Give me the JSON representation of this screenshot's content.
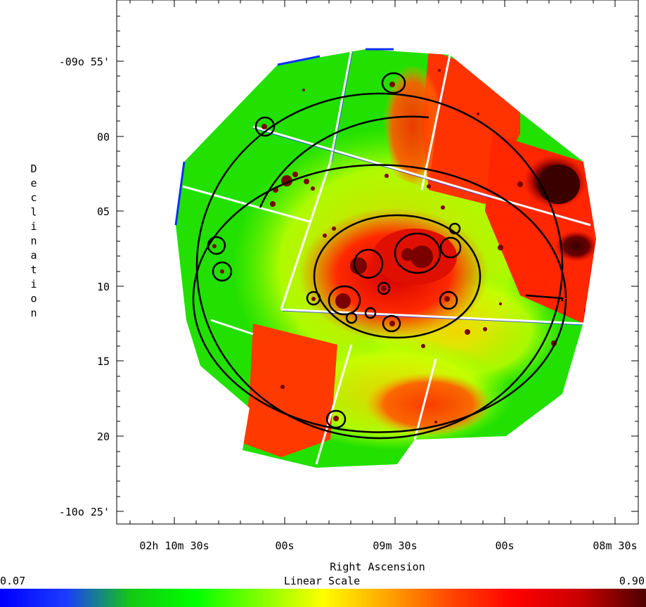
{
  "chart_data": {
    "type": "heatmap",
    "title": "",
    "xlabel": "Right Ascension",
    "ylabel": "Declination",
    "x_ticks": [
      "02h 10m 30s",
      "00s",
      "09m 30s",
      "00s",
      "08m 30s"
    ],
    "y_ticks": [
      "-09o 55'",
      "00",
      "05",
      "10",
      "15",
      "20",
      "-10o 25'"
    ],
    "colorbar": {
      "label": "Linear Scale",
      "min_label": "0.07",
      "max_label": "0.90",
      "min": 0.07,
      "max": 0.9,
      "colors": [
        "#0000ff",
        "#1a3cff",
        "#14c814",
        "#00ff00",
        "#7fff00",
        "#ffff00",
        "#ffa500",
        "#ff4500",
        "#ff0000",
        "#c80000",
        "#500000"
      ]
    }
  }
}
